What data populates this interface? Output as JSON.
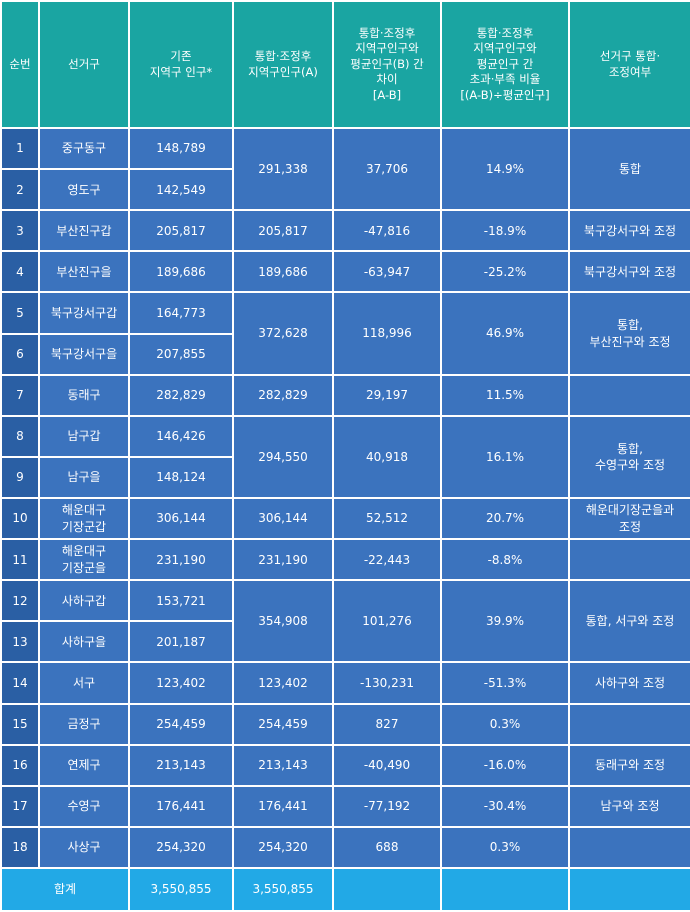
{
  "headers": [
    "순번",
    "선거구",
    "기존\n지역구 인구*",
    "통합·조정후\n지역구인구(A)",
    "통합·조정후\n지역구인구와\n평균인구(B) 간\n차이\n[A-B]",
    "통합·조정후\n지역구인구와\n평균인구 간\n초과·부족 비율\n[(A-B)÷평균인구]",
    "선거구 통합·\n조정여부"
  ],
  "rows": [
    {
      "no": "1",
      "district": "중구동구",
      "pop": "148,789"
    },
    {
      "no": "2",
      "district": "영도구",
      "pop": "142,549"
    },
    {
      "no": "3",
      "district": "부산진구갑",
      "pop": "205,817"
    },
    {
      "no": "4",
      "district": "부산진구을",
      "pop": "189,686"
    },
    {
      "no": "5",
      "district": "북구강서구갑",
      "pop": "164,773"
    },
    {
      "no": "6",
      "district": "북구강서구을",
      "pop": "207,855"
    },
    {
      "no": "7",
      "district": "동래구",
      "pop": "282,829"
    },
    {
      "no": "8",
      "district": "남구갑",
      "pop": "146,426"
    },
    {
      "no": "9",
      "district": "남구을",
      "pop": "148,124"
    },
    {
      "no": "10",
      "district": "해운대구\n기장군갑",
      "pop": "306,144"
    },
    {
      "no": "11",
      "district": "해운대구\n기장군을",
      "pop": "231,190"
    },
    {
      "no": "12",
      "district": "사하구갑",
      "pop": "153,721"
    },
    {
      "no": "13",
      "district": "사하구을",
      "pop": "201,187"
    },
    {
      "no": "14",
      "district": "서구",
      "pop": "123,402"
    },
    {
      "no": "15",
      "district": "금정구",
      "pop": "254,459"
    },
    {
      "no": "16",
      "district": "연제구",
      "pop": "213,143"
    },
    {
      "no": "17",
      "district": "수영구",
      "pop": "176,441"
    },
    {
      "no": "18",
      "district": "사상구",
      "pop": "254,320"
    }
  ],
  "groups": [
    {
      "adj": "291,338",
      "diff": "37,706",
      "ratio": "14.9%",
      "status": "통합"
    },
    {
      "adj": "205,817",
      "diff": "-47,816",
      "ratio": "-18.9%",
      "status": "북구강서구와 조정"
    },
    {
      "adj": "189,686",
      "diff": "-63,947",
      "ratio": "-25.2%",
      "status": "북구강서구와 조정"
    },
    {
      "adj": "372,628",
      "diff": "118,996",
      "ratio": "46.9%",
      "status": "통합,\n부산진구와 조정"
    },
    {
      "adj": "282,829",
      "diff": "29,197",
      "ratio": "11.5%",
      "status": ""
    },
    {
      "adj": "294,550",
      "diff": "40,918",
      "ratio": "16.1%",
      "status": "통합,\n수영구와 조정"
    },
    {
      "adj": "306,144",
      "diff": "52,512",
      "ratio": "20.7%",
      "status": "해운대기장군을과\n조정"
    },
    {
      "adj": "231,190",
      "diff": "-22,443",
      "ratio": "-8.8%",
      "status": ""
    },
    {
      "adj": "354,908",
      "diff": "101,276",
      "ratio": "39.9%",
      "status": "통합, 서구와 조정"
    },
    {
      "adj": "123,402",
      "diff": "-130,231",
      "ratio": "-51.3%",
      "status": "사하구와 조정"
    },
    {
      "adj": "254,459",
      "diff": "827",
      "ratio": "0.3%",
      "status": ""
    },
    {
      "adj": "213,143",
      "diff": "-40,490",
      "ratio": "-16.0%",
      "status": "동래구와 조정"
    },
    {
      "adj": "176,441",
      "diff": "-77,192",
      "ratio": "-30.4%",
      "status": "남구와 조정"
    },
    {
      "adj": "254,320",
      "diff": "688",
      "ratio": "0.3%",
      "status": ""
    }
  ],
  "total": {
    "label": "합계",
    "pop": "3,550,855",
    "adj": "3,550,855"
  },
  "colors": {
    "header": "#1aa5a2",
    "row": "#3b73be",
    "number_col": "#2a5fa4",
    "total": "#22a9e6"
  }
}
